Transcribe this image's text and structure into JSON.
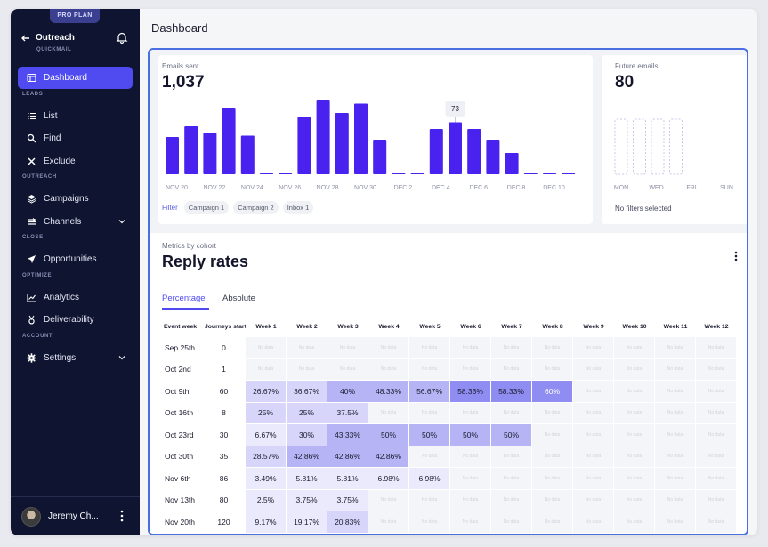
{
  "sidebar": {
    "badge": "PRO PLAN",
    "brand": "Outreach",
    "brand_sub": "QUICKMAIL",
    "nav": [
      {
        "label": "Dashboard",
        "icon": "dashboard-icon",
        "active": true
      },
      {
        "section": "LEADS"
      },
      {
        "label": "List",
        "icon": "list-icon"
      },
      {
        "label": "Find",
        "icon": "search-icon"
      },
      {
        "label": "Exclude",
        "icon": "close-icon"
      },
      {
        "section": "OUTREACH"
      },
      {
        "label": "Campaigns",
        "icon": "layers-icon"
      },
      {
        "label": "Channels",
        "icon": "channels-icon",
        "chevron": true
      },
      {
        "section": "CLOSE"
      },
      {
        "label": "Opportunities",
        "icon": "send-icon"
      },
      {
        "section": "OPTIMIZE"
      },
      {
        "label": "Analytics",
        "icon": "analytics-icon"
      },
      {
        "label": "Deliverability",
        "icon": "medal-icon"
      },
      {
        "section": "ACCOUNT"
      },
      {
        "label": "Settings",
        "icon": "gear-icon",
        "chevron": true
      }
    ],
    "user_name": "Jeremy Ch..."
  },
  "page": {
    "title": "Dashboard"
  },
  "emails_sent": {
    "label": "Emails sent",
    "total": "1,037",
    "tooltip": "73",
    "filter_label": "Filter",
    "filters": [
      "Campaign 1",
      "Campaign 2",
      "Inbox 1"
    ]
  },
  "future_emails": {
    "label": "Future emails",
    "total": "80",
    "no_filters": "No filters selected",
    "day_labels": [
      "MON",
      "WED",
      "FRI",
      "SUN"
    ]
  },
  "chart_data": [
    {
      "type": "bar",
      "title": "Emails sent",
      "values": [
        28,
        36,
        31,
        50,
        29,
        1,
        1,
        43,
        56,
        46,
        53,
        26,
        1,
        1,
        34,
        39,
        34,
        26,
        16,
        1,
        1,
        1
      ],
      "tick_labels": [
        "NOV 20",
        "NOV 22",
        "NOV 24",
        "NOV 26",
        "NOV 28",
        "NOV 30",
        "DEC 2",
        "DEC 4",
        "DEC 6",
        "DEC 8",
        "DEC 10"
      ],
      "highlight_value": 73,
      "grid": false,
      "color": "#4a22f0"
    },
    {
      "type": "bar",
      "title": "Future emails",
      "values": [
        1,
        1,
        1,
        1
      ],
      "tick_labels": [
        "MON",
        "WED",
        "FRI",
        "SUN"
      ],
      "grid": false,
      "color": "#c9c8e8"
    }
  ],
  "cohort": {
    "label": "Metrics by cohort",
    "title": "Reply rates",
    "tabs": [
      "Percentage",
      "Absolute"
    ],
    "headers": [
      "Event week",
      "Journeys started",
      "Week 1",
      "Week 2",
      "Week 3",
      "Week 4",
      "Week 5",
      "Week 6",
      "Week 7",
      "Week 8",
      "Week 9",
      "Week 10",
      "Week 11",
      "Week 12"
    ],
    "no_data": "No data",
    "rows": [
      {
        "week": "Sep 25th",
        "started": "0",
        "cells": [
          "",
          "",
          "",
          "",
          "",
          "",
          "",
          "",
          "",
          "",
          "",
          ""
        ]
      },
      {
        "week": "Oct 2nd",
        "started": "1",
        "cells": [
          "",
          "",
          "",
          "",
          "",
          "",
          "",
          "",
          "",
          "",
          "",
          ""
        ]
      },
      {
        "week": "Oct 9th",
        "started": "60",
        "cells": [
          "26.67%",
          "36.67%",
          "40%",
          "48.33%",
          "56.67%",
          "58.33%",
          "58.33%",
          "60%",
          "",
          "",
          "",
          ""
        ]
      },
      {
        "week": "Oct 16th",
        "started": "8",
        "cells": [
          "25%",
          "25%",
          "37.5%",
          "",
          "",
          "",
          "",
          "",
          "",
          "",
          "",
          ""
        ]
      },
      {
        "week": "Oct 23rd",
        "started": "30",
        "cells": [
          "6.67%",
          "30%",
          "43.33%",
          "50%",
          "50%",
          "50%",
          "50%",
          "",
          "",
          "",
          "",
          ""
        ]
      },
      {
        "week": "Oct 30th",
        "started": "35",
        "cells": [
          "28.57%",
          "42.86%",
          "42.86%",
          "42.86%",
          "",
          "",
          "",
          "",
          "",
          "",
          "",
          ""
        ]
      },
      {
        "week": "Nov 6th",
        "started": "86",
        "cells": [
          "3.49%",
          "5.81%",
          "5.81%",
          "6.98%",
          "6.98%",
          "",
          "",
          "",
          "",
          "",
          "",
          ""
        ]
      },
      {
        "week": "Nov 13th",
        "started": "80",
        "cells": [
          "2.5%",
          "3.75%",
          "3.75%",
          "",
          "",
          "",
          "",
          "",
          "",
          "",
          "",
          ""
        ]
      },
      {
        "week": "Nov 20th",
        "started": "120",
        "cells": [
          "9.17%",
          "19.17%",
          "20.83%",
          "",
          "",
          "",
          "",
          "",
          "",
          "",
          "",
          ""
        ]
      }
    ]
  }
}
